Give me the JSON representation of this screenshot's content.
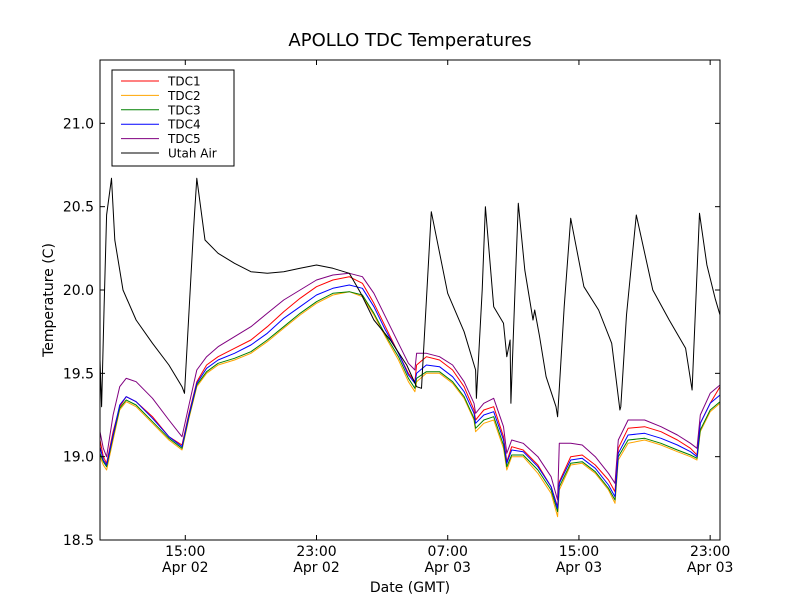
{
  "chart_data": {
    "type": "line",
    "title": "APOLLO TDC Temperatures",
    "xlabel": "Date (GMT)",
    "ylabel": "Temperature (C)",
    "x_unit": "hours since Apr 02 00:00 GMT",
    "xlim": [
      9.8,
      47.6
    ],
    "ylim": [
      18.5,
      21.38
    ],
    "yticks": [
      18.5,
      19.0,
      19.5,
      20.0,
      20.5,
      21.0
    ],
    "ytick_labels": [
      "18.5",
      "19.0",
      "19.5",
      "20.0",
      "20.5",
      "21.0"
    ],
    "xticks": [
      {
        "value": 15,
        "line1": "15:00",
        "line2": "Apr 02"
      },
      {
        "value": 23,
        "line1": "23:00",
        "line2": "Apr 02"
      },
      {
        "value": 31,
        "line1": "07:00",
        "line2": "Apr 03"
      },
      {
        "value": 39,
        "line1": "15:00",
        "line2": "Apr 03"
      },
      {
        "value": 47,
        "line1": "23:00",
        "line2": "Apr 03"
      }
    ],
    "legend_position": "top-left",
    "series": [
      {
        "name": "TDC1",
        "color": "#ff0000",
        "x": [
          9.8,
          10.0,
          10.2,
          10.6,
          11.0,
          11.4,
          12.0,
          13.0,
          14.0,
          14.8,
          15.2,
          15.7,
          16.3,
          17.0,
          18.0,
          19.0,
          20.0,
          21.0,
          22.0,
          23.0,
          24.0,
          25.0,
          25.8,
          26.5,
          27.2,
          28.0,
          28.6,
          29.0,
          29.1,
          29.7,
          30.5,
          31.3,
          32.0,
          32.6,
          32.7,
          33.2,
          33.8,
          34.4,
          34.6,
          34.9,
          35.6,
          36.5,
          37.3,
          37.7,
          37.8,
          38.5,
          39.2,
          40.0,
          40.8,
          41.2,
          41.4,
          42.0,
          43.0,
          44.0,
          45.0,
          45.8,
          46.2,
          46.4,
          47.0,
          47.6
        ],
        "values": [
          19.1,
          19.0,
          18.96,
          19.15,
          19.3,
          19.36,
          19.33,
          19.24,
          19.12,
          19.07,
          19.25,
          19.45,
          19.55,
          19.6,
          19.65,
          19.7,
          19.78,
          19.87,
          19.95,
          20.02,
          20.06,
          20.08,
          20.04,
          19.92,
          19.78,
          19.62,
          19.5,
          19.45,
          19.55,
          19.6,
          19.58,
          19.52,
          19.42,
          19.28,
          19.22,
          19.28,
          19.3,
          19.12,
          18.97,
          19.06,
          19.04,
          18.95,
          18.82,
          18.7,
          18.85,
          19.0,
          19.01,
          18.95,
          18.86,
          18.79,
          19.05,
          19.17,
          19.18,
          19.15,
          19.1,
          19.05,
          19.01,
          19.2,
          19.32,
          19.42
        ]
      },
      {
        "name": "TDC2",
        "color": "#ffa500",
        "x": [
          9.8,
          10.0,
          10.2,
          10.6,
          11.0,
          11.4,
          12.0,
          13.0,
          14.0,
          14.8,
          15.2,
          15.7,
          16.3,
          17.0,
          18.0,
          19.0,
          20.0,
          21.0,
          22.0,
          23.0,
          24.0,
          25.0,
          25.8,
          26.5,
          27.2,
          28.0,
          28.6,
          29.0,
          29.1,
          29.7,
          30.5,
          31.3,
          32.0,
          32.6,
          32.7,
          33.2,
          33.8,
          34.4,
          34.6,
          34.9,
          35.6,
          36.5,
          37.3,
          37.7,
          37.8,
          38.5,
          39.2,
          40.0,
          40.8,
          41.2,
          41.4,
          42.0,
          43.0,
          44.0,
          45.0,
          45.8,
          46.2,
          46.4,
          47.0,
          47.6
        ],
        "values": [
          19.0,
          18.95,
          18.92,
          19.1,
          19.28,
          19.33,
          19.3,
          19.2,
          19.1,
          19.04,
          19.22,
          19.42,
          19.5,
          19.55,
          19.58,
          19.62,
          19.69,
          19.77,
          19.85,
          19.92,
          19.97,
          19.99,
          19.96,
          19.85,
          19.72,
          19.58,
          19.45,
          19.39,
          19.45,
          19.5,
          19.5,
          19.44,
          19.35,
          19.22,
          19.15,
          19.2,
          19.22,
          19.05,
          18.92,
          19.0,
          19.0,
          18.9,
          18.78,
          18.64,
          18.8,
          18.95,
          18.96,
          18.9,
          18.8,
          18.72,
          18.98,
          19.08,
          19.1,
          19.07,
          19.03,
          19.0,
          18.98,
          19.15,
          19.27,
          19.32
        ]
      },
      {
        "name": "TDC3",
        "color": "#008000",
        "x": [
          9.8,
          10.0,
          10.2,
          10.6,
          11.0,
          11.4,
          12.0,
          13.0,
          14.0,
          14.8,
          15.2,
          15.7,
          16.3,
          17.0,
          18.0,
          19.0,
          20.0,
          21.0,
          22.0,
          23.0,
          24.0,
          25.0,
          25.8,
          26.5,
          27.2,
          28.0,
          28.6,
          29.0,
          29.1,
          29.7,
          30.5,
          31.3,
          32.0,
          32.6,
          32.7,
          33.2,
          33.8,
          34.4,
          34.6,
          34.9,
          35.6,
          36.5,
          37.3,
          37.7,
          37.8,
          38.5,
          39.2,
          40.0,
          40.8,
          41.2,
          41.4,
          42.0,
          43.0,
          44.0,
          45.0,
          45.8,
          46.2,
          46.4,
          47.0,
          47.6
        ],
        "values": [
          19.02,
          18.97,
          18.94,
          19.12,
          19.29,
          19.34,
          19.31,
          19.21,
          19.11,
          19.05,
          19.23,
          19.43,
          19.51,
          19.56,
          19.59,
          19.63,
          19.7,
          19.78,
          19.86,
          19.93,
          19.98,
          19.99,
          19.97,
          19.86,
          19.73,
          19.6,
          19.47,
          19.41,
          19.47,
          19.51,
          19.51,
          19.45,
          19.36,
          19.23,
          19.17,
          19.22,
          19.24,
          19.07,
          18.94,
          19.01,
          19.01,
          18.92,
          18.8,
          18.67,
          18.82,
          18.96,
          18.97,
          18.91,
          18.81,
          18.74,
          19.0,
          19.1,
          19.11,
          19.08,
          19.04,
          19.01,
          18.99,
          19.16,
          19.28,
          19.33
        ]
      },
      {
        "name": "TDC4",
        "color": "#0000ff",
        "x": [
          9.8,
          10.0,
          10.2,
          10.6,
          11.0,
          11.4,
          12.0,
          13.0,
          14.0,
          14.8,
          15.2,
          15.7,
          16.3,
          17.0,
          18.0,
          19.0,
          20.0,
          21.0,
          22.0,
          23.0,
          24.0,
          25.0,
          25.8,
          26.5,
          27.2,
          28.0,
          28.6,
          29.0,
          29.1,
          29.7,
          30.5,
          31.3,
          32.0,
          32.6,
          32.7,
          33.2,
          33.8,
          34.4,
          34.6,
          34.9,
          35.6,
          36.5,
          37.3,
          37.7,
          37.8,
          38.5,
          39.2,
          40.0,
          40.8,
          41.2,
          41.4,
          42.0,
          43.0,
          44.0,
          45.0,
          45.8,
          46.2,
          46.4,
          47.0,
          47.6
        ],
        "values": [
          19.06,
          18.98,
          18.95,
          19.13,
          19.31,
          19.36,
          19.33,
          19.23,
          19.12,
          19.06,
          19.24,
          19.44,
          19.53,
          19.58,
          19.62,
          19.67,
          19.74,
          19.83,
          19.9,
          19.97,
          20.01,
          20.03,
          20.01,
          19.9,
          19.76,
          19.62,
          19.49,
          19.44,
          19.5,
          19.55,
          19.54,
          19.48,
          19.39,
          19.26,
          19.2,
          19.25,
          19.27,
          19.1,
          18.96,
          19.04,
          19.03,
          18.94,
          18.82,
          18.69,
          18.84,
          18.98,
          18.99,
          18.93,
          18.83,
          18.76,
          19.02,
          19.13,
          19.14,
          19.11,
          19.07,
          19.03,
          19.0,
          19.2,
          19.32,
          19.37
        ]
      },
      {
        "name": "TDC5",
        "color": "#800080",
        "x": [
          9.8,
          10.0,
          10.2,
          10.6,
          11.0,
          11.4,
          12.0,
          13.0,
          14.0,
          14.8,
          15.2,
          15.7,
          16.3,
          17.0,
          18.0,
          19.0,
          20.0,
          21.0,
          22.0,
          23.0,
          24.0,
          25.0,
          25.8,
          26.5,
          27.2,
          28.0,
          28.6,
          29.0,
          29.1,
          29.7,
          30.5,
          31.3,
          32.0,
          32.6,
          32.7,
          33.2,
          33.8,
          34.4,
          34.6,
          34.9,
          35.6,
          36.5,
          37.3,
          37.7,
          37.8,
          38.5,
          39.2,
          40.0,
          40.8,
          41.2,
          41.4,
          42.0,
          43.0,
          44.0,
          45.0,
          45.8,
          46.2,
          46.4,
          47.0,
          47.6
        ],
        "values": [
          19.15,
          19.05,
          19.0,
          19.25,
          19.42,
          19.47,
          19.45,
          19.35,
          19.22,
          19.12,
          19.3,
          19.52,
          19.6,
          19.66,
          19.72,
          19.78,
          19.86,
          19.94,
          20.0,
          20.06,
          20.09,
          20.1,
          20.08,
          19.98,
          19.84,
          19.68,
          19.56,
          19.52,
          19.62,
          19.62,
          19.6,
          19.55,
          19.45,
          19.32,
          19.26,
          19.32,
          19.35,
          19.18,
          19.02,
          19.1,
          19.08,
          19.0,
          18.88,
          18.74,
          19.08,
          19.08,
          19.07,
          19.0,
          18.9,
          18.84,
          19.1,
          19.22,
          19.22,
          19.18,
          19.13,
          19.08,
          19.05,
          19.25,
          19.38,
          19.43
        ]
      },
      {
        "name": "Utah Air",
        "color": "#000000",
        "x": [
          9.8,
          9.9,
          10.05,
          10.2,
          10.5,
          10.7,
          11.2,
          12.0,
          13.0,
          14.0,
          14.8,
          14.95,
          15.5,
          15.7,
          16.2,
          17.0,
          18.0,
          19.0,
          20.0,
          21.0,
          22.0,
          23.0,
          24.0,
          25.0,
          25.7,
          26.5,
          27.5,
          28.5,
          29.1,
          29.4,
          30.0,
          31.0,
          32.0,
          32.7,
          32.75,
          33.1,
          33.3,
          33.8,
          34.4,
          34.6,
          34.8,
          34.85,
          35.1,
          35.3,
          35.7,
          36.2,
          36.3,
          36.6,
          37.0,
          37.6,
          37.7,
          38.1,
          38.5,
          39.3,
          40.2,
          41.0,
          41.5,
          41.55,
          41.9,
          42.5,
          43.5,
          44.5,
          45.5,
          45.9,
          46.35,
          46.8,
          47.3,
          47.6
        ],
        "values": [
          19.58,
          19.3,
          19.9,
          20.45,
          20.67,
          20.3,
          20.0,
          19.82,
          19.68,
          19.55,
          19.42,
          19.38,
          20.36,
          20.67,
          20.3,
          20.22,
          20.16,
          20.11,
          20.1,
          20.11,
          20.13,
          20.15,
          20.13,
          20.1,
          19.98,
          19.82,
          19.7,
          19.55,
          19.42,
          19.41,
          20.47,
          19.98,
          19.75,
          19.52,
          19.35,
          20.0,
          20.5,
          19.9,
          19.8,
          19.6,
          19.7,
          19.32,
          20.0,
          20.52,
          20.12,
          19.82,
          19.88,
          19.72,
          19.48,
          19.3,
          19.24,
          19.9,
          20.43,
          20.02,
          19.88,
          19.68,
          19.28,
          19.3,
          19.85,
          20.45,
          20.0,
          19.82,
          19.65,
          19.4,
          20.46,
          20.15,
          19.95,
          19.85
        ]
      }
    ]
  }
}
